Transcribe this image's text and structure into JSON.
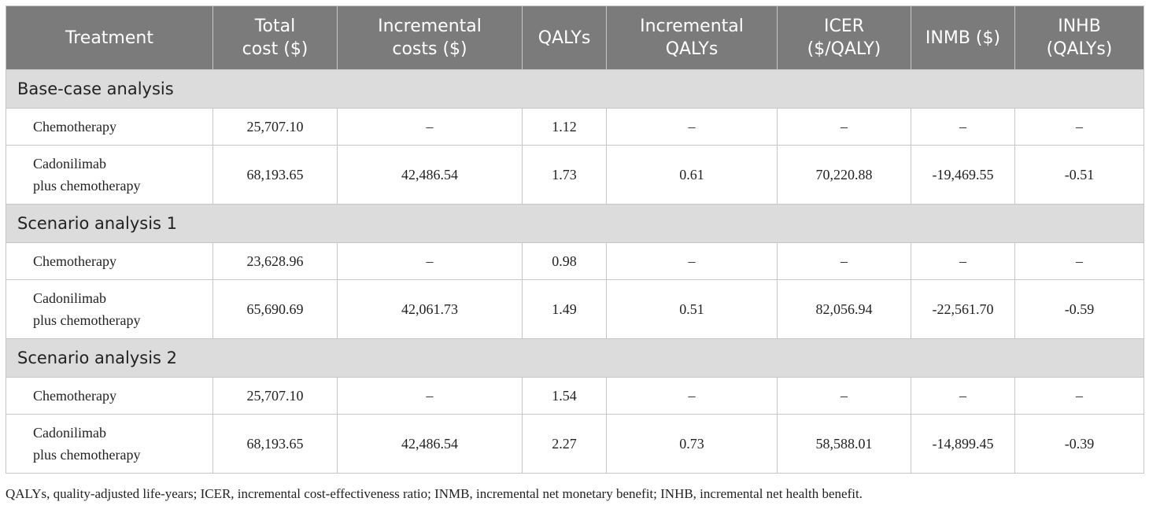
{
  "table": {
    "headers": [
      "Treatment",
      "Total cost ($)",
      "Incremental costs ($)",
      "QALYs",
      "Incremental QALYs",
      "ICER ($/QALY)",
      "INMB ($)",
      "INHB (QALYs)"
    ],
    "sections": [
      {
        "title": "Base-case analysis",
        "rows": [
          [
            "Chemotherapy",
            "25,707.10",
            "–",
            "1.12",
            "–",
            "–",
            "–",
            "–"
          ],
          [
            "Cadonilimab plus chemotherapy",
            "68,193.65",
            "42,486.54",
            "1.73",
            "0.61",
            "70,220.88",
            "-19,469.55",
            "-0.51"
          ]
        ]
      },
      {
        "title": "Scenario analysis 1",
        "rows": [
          [
            "Chemotherapy",
            "23,628.96",
            "–",
            "0.98",
            "–",
            "–",
            "–",
            "–"
          ],
          [
            "Cadonilimab plus chemotherapy",
            "65,690.69",
            "42,061.73",
            "1.49",
            "0.51",
            "82,056.94",
            "-22,561.70",
            "-0.59"
          ]
        ]
      },
      {
        "title": "Scenario analysis 2",
        "rows": [
          [
            "Chemotherapy",
            "25,707.10",
            "–",
            "1.54",
            "–",
            "–",
            "–",
            "–"
          ],
          [
            "Cadonilimab plus chemotherapy",
            "68,193.65",
            "42,486.54",
            "2.27",
            "0.73",
            "58,588.01",
            "-14,899.45",
            "-0.39"
          ]
        ]
      }
    ]
  },
  "footnote": "QALYs, quality-adjusted life-years; ICER, incremental cost-effectiveness ratio; INMB, incremental net monetary benefit; INHB, incremental net health benefit."
}
